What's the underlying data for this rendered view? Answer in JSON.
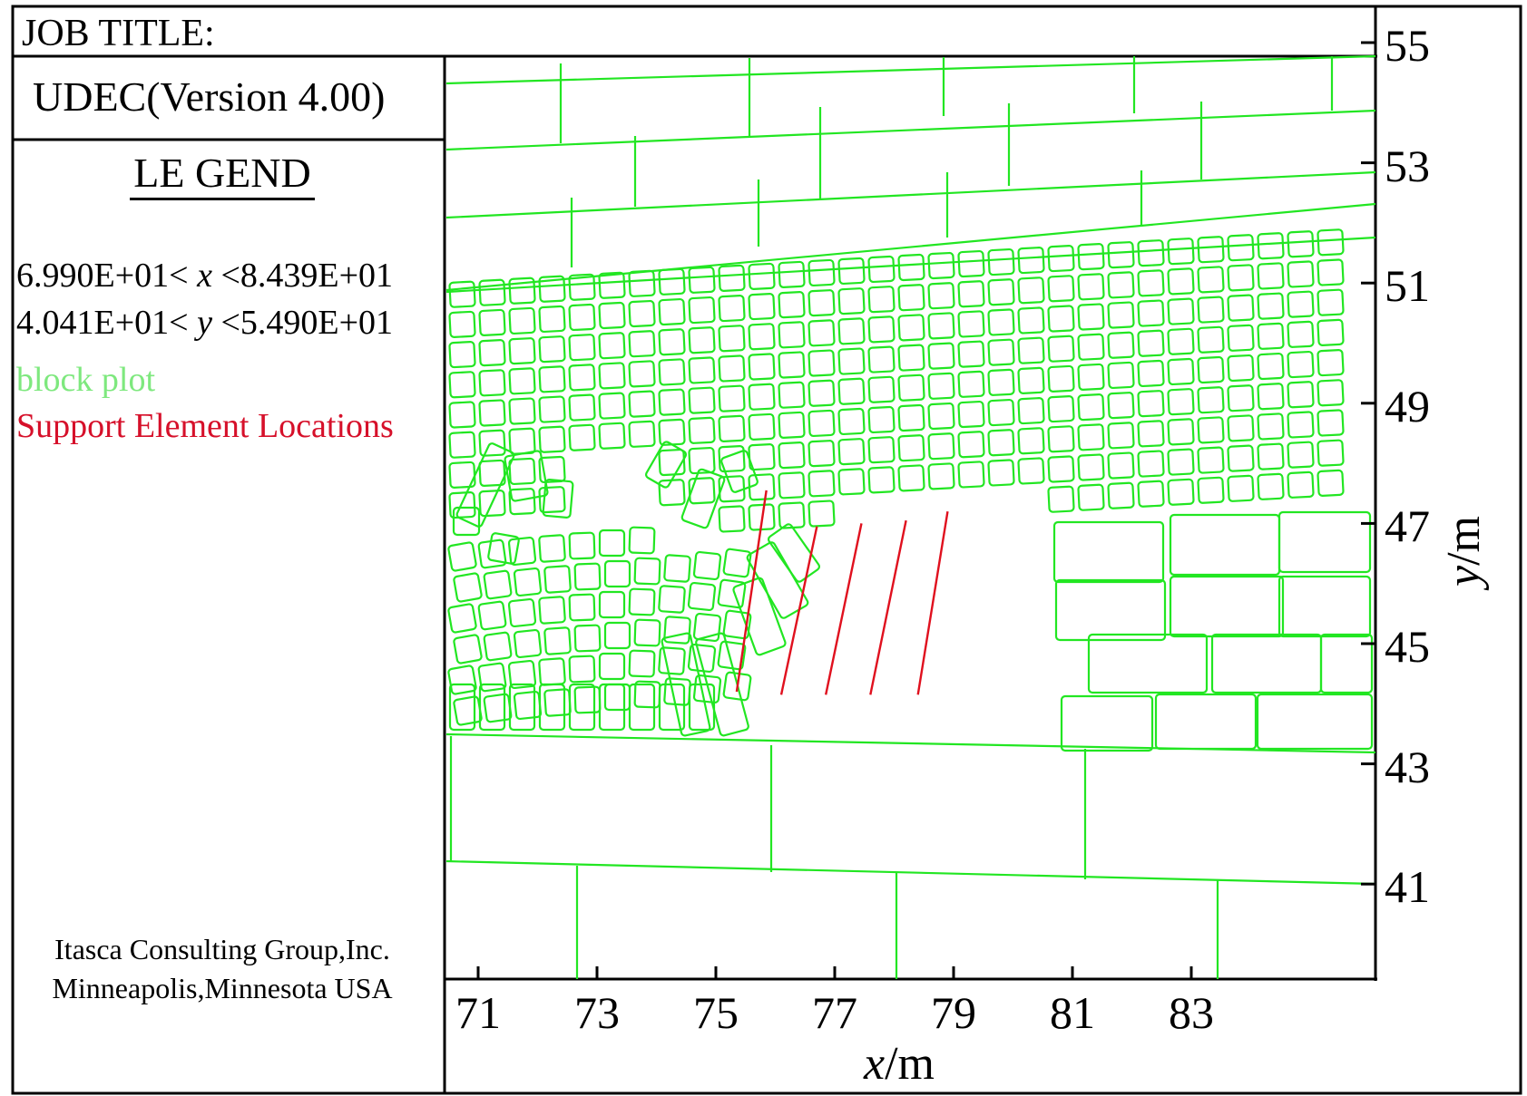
{
  "header": {
    "job_title": "JOB TITLE:",
    "version": "UDEC(Version 4.00)"
  },
  "legend": {
    "title": "LE GEND",
    "x_range": {
      "min": "6.990E+01",
      "max": "8.439E+01",
      "var": "x"
    },
    "y_range": {
      "min": "4.041E+01",
      "max": "5.490E+01",
      "var": "y"
    },
    "items": [
      {
        "label": "block plot",
        "color": "#7ee87e"
      },
      {
        "label": "Support Element Locations",
        "color": "#d6102a"
      }
    ]
  },
  "footer": {
    "company": "Itasca Consulting Group,Inc.",
    "address": "Minneapolis,Minnesota USA"
  },
  "chart_data": {
    "type": "block-plot",
    "xlabel_var": "x",
    "xlabel_unit": "/m",
    "ylabel_var": "y",
    "ylabel_unit": "/m",
    "xlim": [
      69.9,
      84.39
    ],
    "ylim": [
      40.41,
      54.9
    ],
    "x_ticks": [
      71,
      73,
      75,
      77,
      79,
      81,
      83
    ],
    "y_ticks": [
      41,
      43,
      45,
      47,
      49,
      51,
      53,
      55
    ],
    "block_color": "#22e622",
    "support_color": "#e0101e",
    "support_elements": [
      {
        "x1": 75.35,
        "y1": 44.2,
        "x2": 75.85,
        "y2": 47.55
      },
      {
        "x1": 76.1,
        "y1": 44.15,
        "x2": 76.7,
        "y2": 46.95
      },
      {
        "x1": 76.85,
        "y1": 44.15,
        "x2": 77.45,
        "y2": 47.0
      },
      {
        "x1": 77.6,
        "y1": 44.15,
        "x2": 78.2,
        "y2": 47.05
      },
      {
        "x1": 78.4,
        "y1": 44.15,
        "x2": 78.9,
        "y2": 47.2
      }
    ]
  }
}
